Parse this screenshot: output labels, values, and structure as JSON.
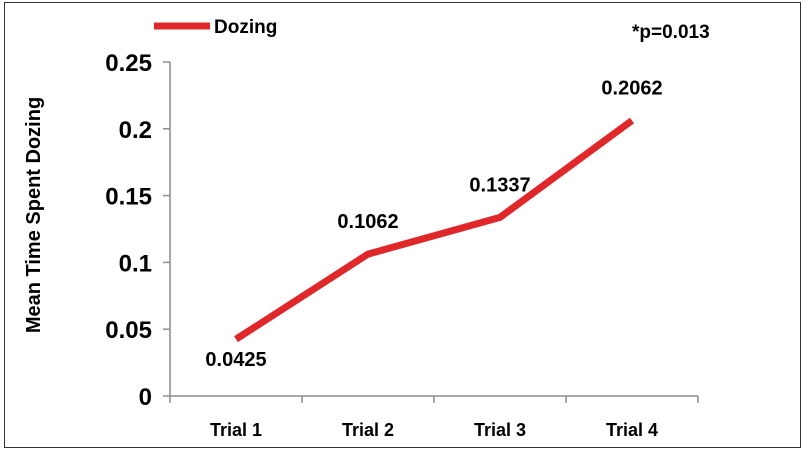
{
  "chart_data": {
    "type": "line",
    "categories": [
      "Trial 1",
      "Trial 2",
      "Trial 3",
      "Trial 4"
    ],
    "series": [
      {
        "name": "Dozing",
        "values": [
          0.0425,
          0.1062,
          0.1337,
          0.2062
        ],
        "color": "#e0282a"
      }
    ],
    "data_labels": [
      "0.0425",
      "0.1062",
      "0.1337",
      "0.2062"
    ],
    "ylabel": "Mean Time Spent Dozing",
    "xlabel": "",
    "title": "",
    "ylim": [
      0,
      0.25
    ],
    "yticks": [
      0,
      0.05,
      0.1,
      0.15,
      0.2,
      0.25
    ],
    "ytick_labels": [
      "0",
      "0.05",
      "0.1",
      "0.15",
      "0.2",
      "0.25"
    ],
    "annotation": "*p=0.013",
    "legend_position": "top-left",
    "grid": false
  }
}
